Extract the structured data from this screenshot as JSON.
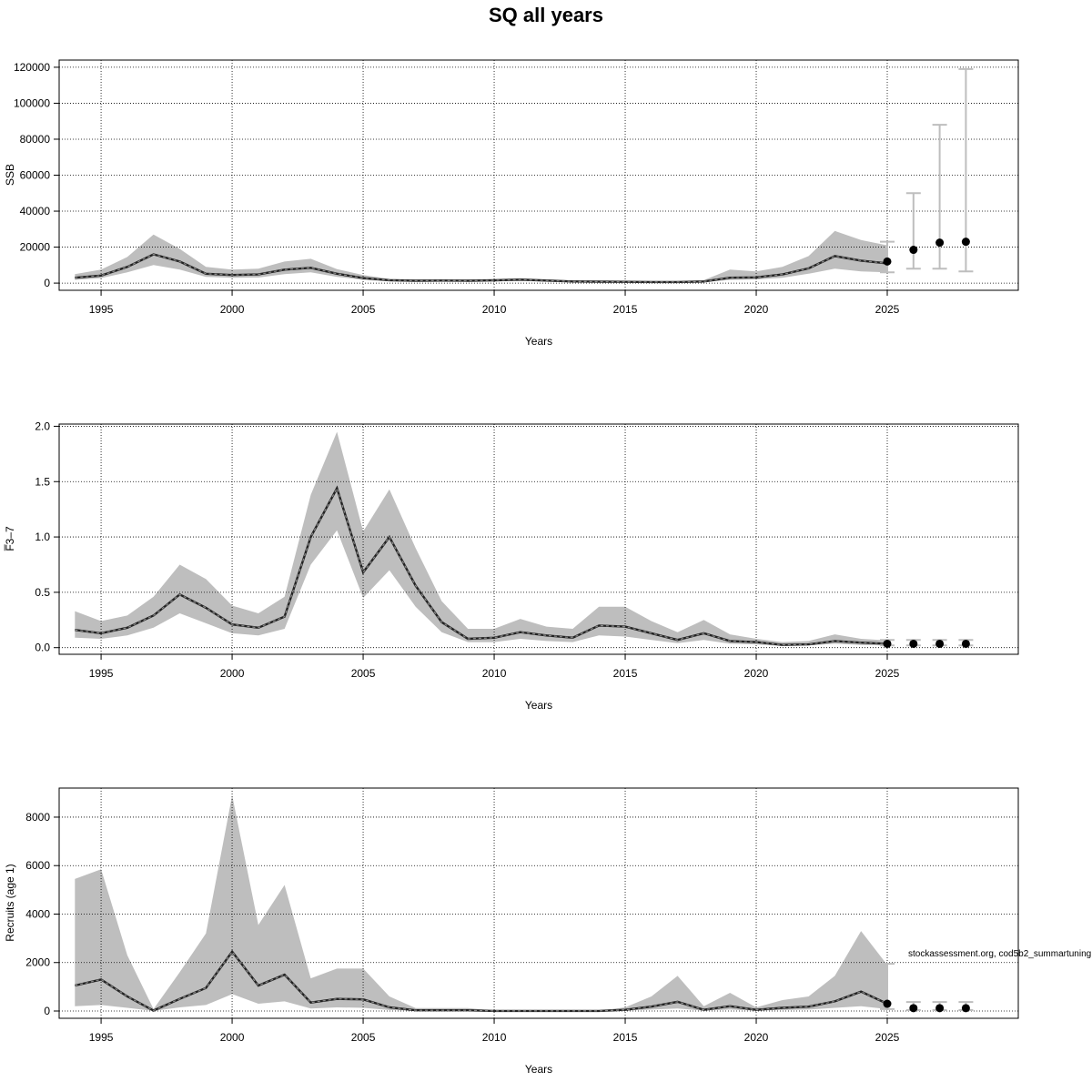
{
  "figure": {
    "title": "SQ all years",
    "annotation": "stockassessment.org, cod5b2_summartuning"
  },
  "colors": {
    "band": "#bebebe",
    "line": "#222222",
    "point": "#000000",
    "errorbar": "#bebebe",
    "grid": "#000000",
    "frame": "#000000"
  },
  "chart_data": [
    {
      "type": "line",
      "name": "ssb",
      "title": "",
      "xlabel": "Years",
      "ylabel": "SSB",
      "xlim": [
        1993.4,
        2030.0
      ],
      "ylim": [
        -4000,
        124000
      ],
      "xticks": [
        1995,
        2000,
        2005,
        2010,
        2015,
        2020,
        2025
      ],
      "yticks": [
        0,
        20000,
        40000,
        60000,
        80000,
        100000,
        120000
      ],
      "grid": true,
      "years": [
        1994,
        1995,
        1996,
        1997,
        1998,
        1999,
        2000,
        2001,
        2002,
        2003,
        2004,
        2005,
        2006,
        2007,
        2008,
        2009,
        2010,
        2011,
        2012,
        2013,
        2014,
        2015,
        2016,
        2017,
        2018,
        2019,
        2020,
        2021,
        2022,
        2023,
        2024,
        2025
      ],
      "estimate": [
        3000,
        4200,
        9000,
        16000,
        12000,
        5200,
        4500,
        4800,
        7500,
        8500,
        5200,
        2800,
        1600,
        1300,
        1400,
        1300,
        1500,
        1900,
        1400,
        900,
        800,
        700,
        600,
        600,
        900,
        3000,
        3200,
        4800,
        8200,
        15000,
        12500,
        11000
      ],
      "lower": [
        1800,
        2800,
        6000,
        10000,
        7500,
        3500,
        3000,
        3100,
        5000,
        6000,
        3500,
        1800,
        900,
        800,
        850,
        800,
        900,
        1200,
        800,
        500,
        450,
        400,
        350,
        350,
        500,
        1800,
        2000,
        3000,
        5200,
        8000,
        6500,
        6000
      ],
      "upper": [
        5000,
        7500,
        14500,
        27000,
        19000,
        9000,
        7500,
        8000,
        12000,
        13500,
        7800,
        4500,
        2300,
        2000,
        2100,
        2000,
        2300,
        2800,
        2100,
        1400,
        1300,
        1200,
        1100,
        1100,
        1600,
        7500,
        6500,
        9000,
        15000,
        29000,
        24000,
        21000
      ],
      "forecast": {
        "years": [
          2025,
          2026,
          2027,
          2028
        ],
        "median": [
          12000,
          18500,
          22500,
          23000
        ],
        "low": [
          6000,
          8000,
          8000,
          6500
        ],
        "high": [
          23000,
          50000,
          88000,
          119000
        ]
      }
    },
    {
      "type": "line",
      "name": "fbar",
      "title": "",
      "xlabel": "Years",
      "ylabel": "F̅3–7",
      "xlim": [
        1993.4,
        2030.0
      ],
      "ylim": [
        -0.06,
        2.02
      ],
      "xticks": [
        1995,
        2000,
        2005,
        2010,
        2015,
        2020,
        2025
      ],
      "yticks": [
        0.0,
        0.5,
        1.0,
        1.5,
        2.0
      ],
      "ytick_labels": [
        "0.0",
        "0.5",
        "1.0",
        "1.5",
        "2.0"
      ],
      "grid": true,
      "years": [
        1994,
        1995,
        1996,
        1997,
        1998,
        1999,
        2000,
        2001,
        2002,
        2003,
        2004,
        2005,
        2006,
        2007,
        2008,
        2009,
        2010,
        2011,
        2012,
        2013,
        2014,
        2015,
        2016,
        2017,
        2018,
        2019,
        2020,
        2021,
        2022,
        2023,
        2024,
        2025
      ],
      "estimate": [
        0.16,
        0.13,
        0.18,
        0.29,
        0.48,
        0.36,
        0.21,
        0.18,
        0.28,
        1.0,
        1.44,
        0.68,
        1.0,
        0.56,
        0.23,
        0.08,
        0.09,
        0.14,
        0.11,
        0.09,
        0.2,
        0.19,
        0.13,
        0.07,
        0.13,
        0.06,
        0.05,
        0.025,
        0.03,
        0.06,
        0.045,
        0.035
      ],
      "lower": [
        0.09,
        0.08,
        0.11,
        0.18,
        0.31,
        0.22,
        0.13,
        0.11,
        0.17,
        0.75,
        1.06,
        0.45,
        0.7,
        0.37,
        0.14,
        0.05,
        0.05,
        0.08,
        0.06,
        0.05,
        0.11,
        0.1,
        0.07,
        0.04,
        0.07,
        0.035,
        0.03,
        0.015,
        0.02,
        0.035,
        0.025,
        0.02
      ],
      "upper": [
        0.33,
        0.24,
        0.29,
        0.46,
        0.75,
        0.62,
        0.38,
        0.31,
        0.46,
        1.38,
        1.95,
        1.05,
        1.43,
        0.9,
        0.42,
        0.17,
        0.17,
        0.26,
        0.19,
        0.17,
        0.37,
        0.37,
        0.24,
        0.14,
        0.25,
        0.12,
        0.08,
        0.05,
        0.06,
        0.12,
        0.08,
        0.065
      ],
      "forecast": {
        "years": [
          2025,
          2026,
          2027,
          2028
        ],
        "median": [
          0.035,
          0.035,
          0.035,
          0.035
        ],
        "low": [
          0.02,
          0.02,
          0.02,
          0.02
        ],
        "high": [
          0.07,
          0.07,
          0.07,
          0.07
        ]
      }
    },
    {
      "type": "line",
      "name": "recruits",
      "title": "",
      "xlabel": "Years",
      "ylabel": "Recruits (age 1)",
      "xlim": [
        1993.4,
        2030.0
      ],
      "ylim": [
        -300,
        9200
      ],
      "xticks": [
        1995,
        2000,
        2005,
        2010,
        2015,
        2020,
        2025
      ],
      "yticks": [
        0,
        2000,
        4000,
        6000,
        8000
      ],
      "grid": true,
      "years": [
        1994,
        1995,
        1996,
        1997,
        1998,
        1999,
        2000,
        2001,
        2002,
        2003,
        2004,
        2005,
        2006,
        2007,
        2008,
        2009,
        2010,
        2011,
        2012,
        2013,
        2014,
        2015,
        2016,
        2017,
        2018,
        2019,
        2020,
        2021,
        2022,
        2023,
        2024,
        2025
      ],
      "estimate": [
        1050,
        1300,
        600,
        20,
        500,
        950,
        2450,
        1050,
        1500,
        350,
        500,
        480,
        150,
        30,
        30,
        30,
        5,
        5,
        5,
        5,
        5,
        50,
        180,
        380,
        50,
        200,
        50,
        130,
        180,
        400,
        800,
        300
      ],
      "lower": [
        200,
        250,
        130,
        5,
        150,
        250,
        700,
        300,
        400,
        100,
        150,
        130,
        40,
        8,
        8,
        8,
        1,
        1,
        1,
        1,
        1,
        15,
        60,
        100,
        15,
        60,
        15,
        40,
        60,
        130,
        200,
        80
      ],
      "upper": [
        5450,
        5850,
        2300,
        80,
        1600,
        3200,
        8900,
        3550,
        5200,
        1350,
        1750,
        1750,
        600,
        120,
        120,
        120,
        20,
        20,
        20,
        20,
        20,
        150,
        600,
        1450,
        200,
        750,
        150,
        450,
        600,
        1450,
        3300,
        1900
      ],
      "forecast": {
        "years": [
          2025,
          2026,
          2027,
          2028
        ],
        "median": [
          300,
          120,
          120,
          120
        ],
        "low": [
          80,
          40,
          40,
          40
        ],
        "high": [
          1950,
          370,
          370,
          370
        ]
      }
    }
  ]
}
